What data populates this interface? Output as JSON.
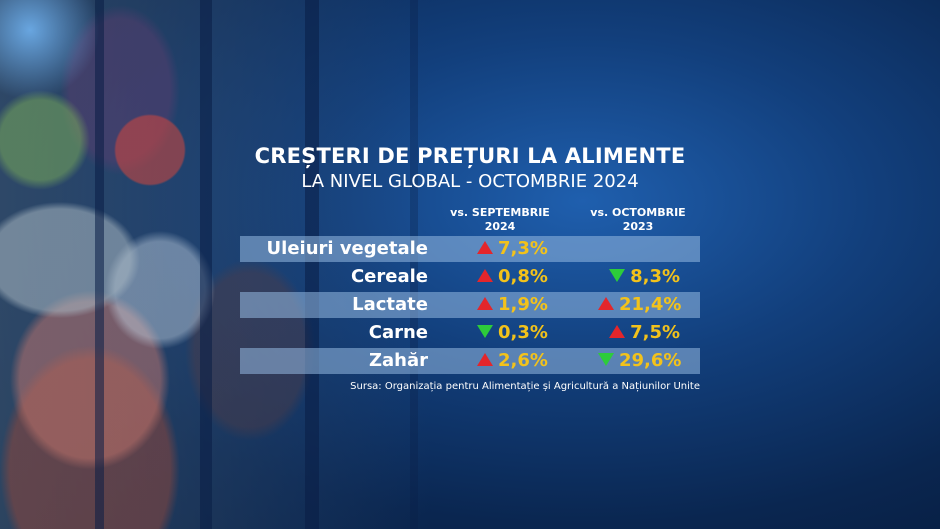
{
  "title": "CREȘTERI DE PREȚURI LA ALIMENTE",
  "subtitle": "LA NIVEL GLOBAL - OCTOMBRIE 2024",
  "columns": [
    {
      "line1": "vs. SEPTEMBRIE",
      "line2": "2024"
    },
    {
      "line1": "vs. OCTOMBRIE",
      "line2": "2023"
    }
  ],
  "rows": [
    {
      "name": "Uleiuri vegetale",
      "v1": "7,3%",
      "d1": "up",
      "v2": "",
      "d2": ""
    },
    {
      "name": "Cereale",
      "v1": "0,8%",
      "d1": "up",
      "v2": "8,3%",
      "d2": "down"
    },
    {
      "name": "Lactate",
      "v1": "1,9%",
      "d1": "up",
      "v2": "21,4%",
      "d2": "up"
    },
    {
      "name": "Carne",
      "v1": "0,3%",
      "d1": "down",
      "v2": "7,5%",
      "d2": "up"
    },
    {
      "name": "Zahăr",
      "v1": "2,6%",
      "d1": "up",
      "v2": "29,6%",
      "d2": "down"
    }
  ],
  "source": "Sursa: Organizația pentru Alimentație și Agricultură a Națiunilor Unite",
  "colors": {
    "up": "#e3262b",
    "down": "#2dcc3a",
    "value": "#f2c21b",
    "band": "#96b9e1"
  }
}
